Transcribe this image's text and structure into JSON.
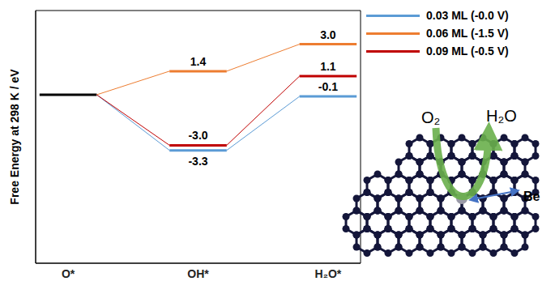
{
  "chart_data": {
    "type": "line",
    "ylabel": "Free Energy at 298 K / eV",
    "categories": [
      "O*",
      "OH*",
      "H₂O*"
    ],
    "series": [
      {
        "name": "0.03 ML (-0.0 V)",
        "color": "#5b9bd5",
        "values": [
          0,
          -3.3,
          -0.1
        ],
        "value_labels": [
          null,
          "-3.3",
          "-0.1"
        ]
      },
      {
        "name": "0.06 ML (-1.5 V)",
        "color": "#ed7d31",
        "values": [
          0,
          1.4,
          3.0
        ],
        "value_labels": [
          null,
          "1.4",
          "3.0"
        ]
      },
      {
        "name": "0.09 ML (-0.5 V)",
        "color": "#c00000",
        "values": [
          0,
          -3.0,
          1.1
        ],
        "value_labels": [
          null,
          "-3.0",
          "1.1"
        ]
      }
    ],
    "ylim": [
      -10,
      5
    ],
    "tick_labels": "x",
    "data_labels": true,
    "legend": "upper right",
    "annotations": [
      "O₂",
      "H₂O",
      "Be"
    ]
  }
}
